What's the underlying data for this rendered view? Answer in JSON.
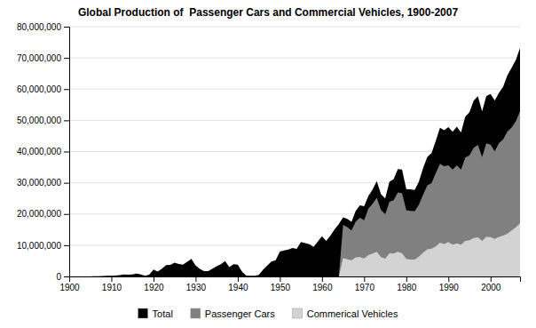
{
  "chart_data": {
    "type": "area",
    "title": "Global Production of  Passenger Cars and Commercial Vehicles, 1900-2007",
    "x": [
      1900,
      1901,
      1902,
      1903,
      1904,
      1905,
      1906,
      1907,
      1908,
      1909,
      1910,
      1911,
      1912,
      1913,
      1914,
      1915,
      1916,
      1917,
      1918,
      1919,
      1920,
      1921,
      1922,
      1923,
      1924,
      1925,
      1926,
      1927,
      1928,
      1929,
      1930,
      1931,
      1932,
      1933,
      1934,
      1935,
      1936,
      1937,
      1938,
      1939,
      1940,
      1941,
      1942,
      1943,
      1944,
      1945,
      1946,
      1947,
      1948,
      1949,
      1950,
      1951,
      1952,
      1953,
      1954,
      1955,
      1956,
      1957,
      1958,
      1959,
      1960,
      1961,
      1962,
      1963,
      1964,
      1965,
      1966,
      1967,
      1968,
      1969,
      1970,
      1971,
      1972,
      1973,
      1974,
      1975,
      1976,
      1977,
      1978,
      1979,
      1980,
      1981,
      1982,
      1983,
      1984,
      1985,
      1986,
      1987,
      1988,
      1989,
      1990,
      1991,
      1992,
      1993,
      1994,
      1995,
      1996,
      1997,
      1998,
      1999,
      2000,
      2001,
      2002,
      2003,
      2004,
      2005,
      2006,
      2007
    ],
    "series": [
      {
        "name": "Total",
        "color": "#000000",
        "values": [
          9000,
          10000,
          14000,
          17000,
          22000,
          27000,
          50000,
          65000,
          127000,
          194000,
          213000,
          300000,
          400000,
          606000,
          568000,
          667000,
          900000,
          660000,
          200000,
          550000,
          2200000,
          1600000,
          2500000,
          3600000,
          3700000,
          4400000,
          4000000,
          3800000,
          4700000,
          5600000,
          3500000,
          2400000,
          1700000,
          1700000,
          2500000,
          3300000,
          3900000,
          4900000,
          3000000,
          3900000,
          3800000,
          1600000,
          300000,
          200000,
          200000,
          500000,
          2100000,
          3500000,
          4800000,
          5200000,
          8000000,
          8300000,
          8600000,
          9100000,
          8800000,
          11000000,
          10700000,
          10300000,
          9500000,
          11200000,
          12900000,
          11400000,
          13100000,
          15100000,
          16800000,
          18900000,
          18400000,
          17500000,
          21000000,
          22800000,
          22500000,
          25800000,
          27800000,
          30500000,
          26300000,
          25000000,
          30300000,
          31200000,
          34400000,
          34200000,
          28000000,
          27900000,
          27700000,
          30400000,
          34700000,
          38300000,
          39500000,
          43400000,
          47600000,
          46800000,
          47800000,
          46300000,
          48000000,
          46100000,
          51200000,
          52600000,
          56300000,
          57700000,
          52900000,
          57800000,
          58400000,
          56400000,
          58800000,
          60800000,
          64400000,
          66800000,
          69300000,
          73200000
        ]
      },
      {
        "name": "Passenger Cars",
        "color": "#808080",
        "values": [
          0,
          0,
          0,
          0,
          0,
          0,
          0,
          0,
          0,
          0,
          0,
          0,
          0,
          0,
          0,
          0,
          0,
          0,
          0,
          0,
          0,
          0,
          0,
          0,
          0,
          0,
          0,
          0,
          0,
          0,
          0,
          0,
          0,
          0,
          0,
          0,
          0,
          0,
          0,
          0,
          0,
          0,
          0,
          0,
          0,
          0,
          0,
          0,
          0,
          0,
          0,
          0,
          0,
          0,
          0,
          0,
          0,
          0,
          0,
          0,
          0,
          0,
          0,
          0,
          0,
          16500000,
          15800000,
          14700000,
          17600000,
          18800000,
          18000000,
          21700000,
          23300000,
          25200000,
          21300000,
          19900000,
          23900000,
          24400000,
          26900000,
          26600000,
          21200000,
          21000000,
          20900000,
          23000000,
          26200000,
          29200000,
          29900000,
          33100000,
          36100000,
          35300000,
          35600000,
          34200000,
          35600000,
          34200000,
          38100000,
          38800000,
          41200000,
          42130000,
          38200000,
          42600000,
          42200000,
          40100000,
          42700000,
          43900000,
          46400000,
          47700000,
          49700000,
          52900000
        ]
      },
      {
        "name": "Commerical Vehicles",
        "color": "#d3d3d3",
        "values": [
          0,
          0,
          0,
          0,
          0,
          0,
          0,
          0,
          0,
          0,
          0,
          0,
          0,
          0,
          0,
          0,
          0,
          0,
          0,
          0,
          0,
          0,
          0,
          0,
          0,
          0,
          0,
          0,
          0,
          0,
          0,
          0,
          0,
          0,
          0,
          0,
          0,
          0,
          0,
          0,
          0,
          0,
          0,
          0,
          0,
          0,
          0,
          0,
          0,
          0,
          0,
          0,
          0,
          0,
          0,
          0,
          0,
          0,
          0,
          0,
          0,
          0,
          0,
          0,
          0,
          5900000,
          5500000,
          5200000,
          6100000,
          6200000,
          5800000,
          6800000,
          7300000,
          7900000,
          6200000,
          5700000,
          7400000,
          7300000,
          7900000,
          7400000,
          5600000,
          5400000,
          5400000,
          6300000,
          7600000,
          8700000,
          8900000,
          9600000,
          10800000,
          10400000,
          11000000,
          10200000,
          10600000,
          10200000,
          11400000,
          11600000,
          12300000,
          12500000,
          11400000,
          12700000,
          12600000,
          12000000,
          12700000,
          13100000,
          13700000,
          14700000,
          15700000,
          17000000
        ]
      }
    ],
    "xlim": [
      1900,
      2007
    ],
    "xticks": [
      1900,
      1910,
      1920,
      1930,
      1940,
      1950,
      1960,
      1970,
      1980,
      1990,
      2000
    ],
    "ylim": [
      0,
      80000000
    ],
    "yticks": [
      0,
      {
        "value": 10000000,
        "label": "10,000,000"
      },
      {
        "value": 20000000,
        "label": "20,000,000"
      },
      {
        "value": 30000000,
        "label": "30,000,000"
      },
      {
        "value": 40000000,
        "label": "40,000,000"
      },
      {
        "value": 50000000,
        "label": "50,000,000"
      },
      {
        "value": 60000000,
        "label": "60,000,000"
      },
      {
        "value": 70000000,
        "label": "70,000,000"
      },
      {
        "value": 80000000,
        "label": "80,000,000"
      }
    ],
    "grid": true,
    "legend": "bottom"
  }
}
